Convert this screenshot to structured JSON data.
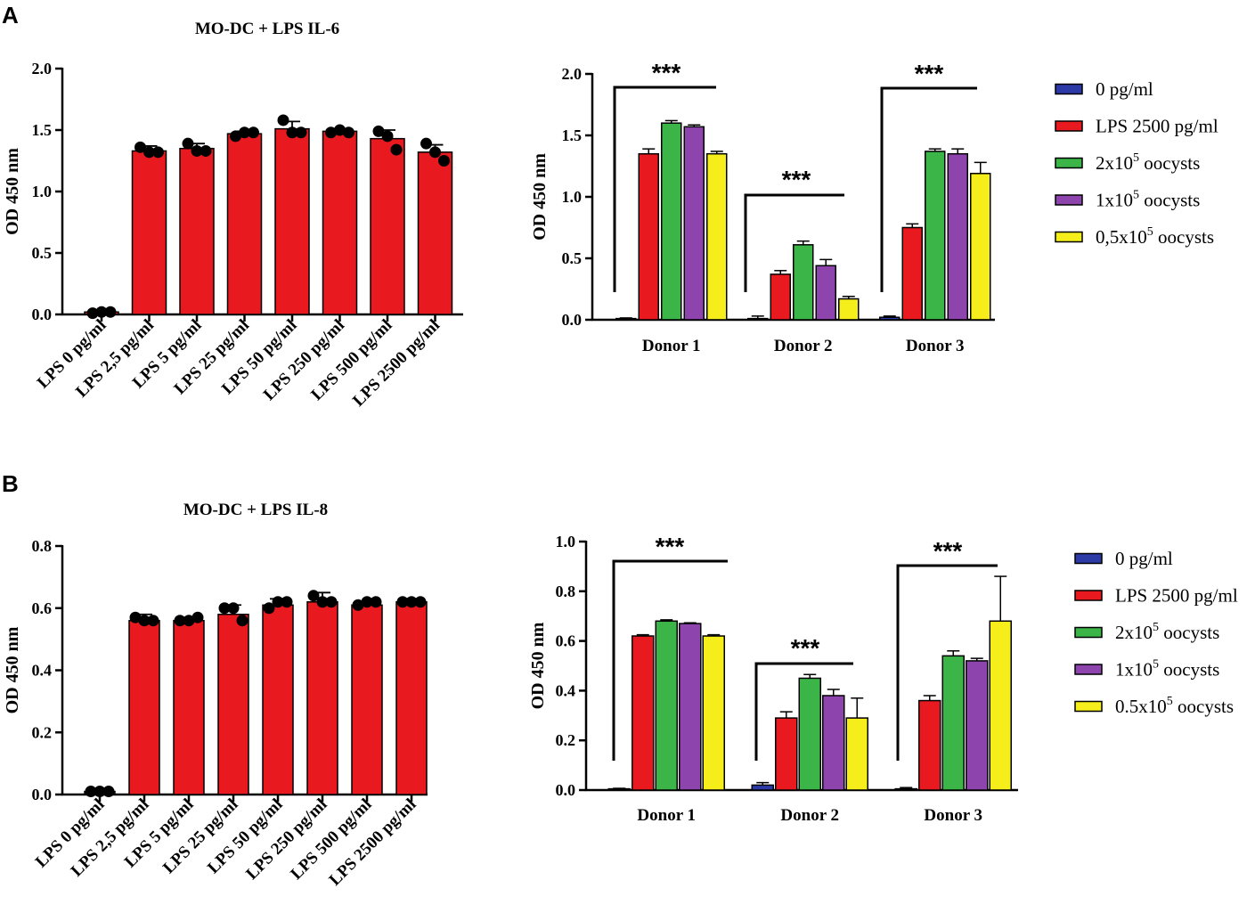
{
  "panel_labels": [
    "A",
    "B"
  ],
  "colors": {
    "red": "#e8191f",
    "blue": "#2c3aa8",
    "green": "#3cb548",
    "purple": "#8e44ad",
    "yellow": "#f5ee1a",
    "black": "#000000"
  },
  "chart_data": [
    {
      "id": "A-left",
      "type": "bar",
      "title": "MO-DC + LPS IL-6",
      "xlabel": "",
      "ylabel": "OD 450 nm",
      "ylim": [
        0,
        2.0
      ],
      "yticks": [
        0.0,
        0.5,
        1.0,
        1.5,
        2.0
      ],
      "ytick_labels": [
        "0.0",
        "0.5",
        "1.0",
        "1.5",
        "2.0"
      ],
      "categories": [
        "LPS 0 pg/ml",
        "LPS 2,5 pg/ml",
        "LPS 5 pg/ml",
        "LPS 25 pg/ml",
        "LPS 50 pg/ml",
        "LPS 250 pg/ml",
        "LPS 500 pg/ml",
        "LPS 2500 pg/ml"
      ],
      "values": [
        0.02,
        1.33,
        1.35,
        1.47,
        1.51,
        1.49,
        1.43,
        1.32
      ],
      "errors": [
        0.01,
        0.04,
        0.04,
        0.02,
        0.06,
        0.02,
        0.07,
        0.06
      ],
      "points": [
        [
          0.01,
          0.02,
          0.02
        ],
        [
          1.36,
          1.32,
          1.32
        ],
        [
          1.39,
          1.33,
          1.33
        ],
        [
          1.45,
          1.48,
          1.48
        ],
        [
          1.58,
          1.48,
          1.48
        ],
        [
          1.48,
          1.5,
          1.48
        ],
        [
          1.49,
          1.45,
          1.34
        ],
        [
          1.39,
          1.32,
          1.25
        ]
      ]
    },
    {
      "id": "A-right",
      "type": "bar",
      "xlabel": "",
      "ylabel": "OD 450 nm",
      "ylim": [
        0,
        2.0
      ],
      "yticks": [
        0.0,
        0.5,
        1.0,
        1.5,
        2.0
      ],
      "ytick_labels": [
        "0.0",
        "0.5",
        "1.0",
        "1.5",
        "2.0"
      ],
      "categories": [
        "Donor 1",
        "Donor 2",
        "Donor 3"
      ],
      "series": [
        {
          "name": "0 pg/ml",
          "color": "#2c3aa8",
          "values": [
            0.01,
            0.01,
            0.02
          ],
          "errors": [
            0.005,
            0.02,
            0.01
          ]
        },
        {
          "name": "LPS 2500 pg/ml",
          "color": "#e8191f",
          "values": [
            1.35,
            0.37,
            0.75
          ],
          "errors": [
            0.04,
            0.03,
            0.03
          ]
        },
        {
          "name": "2x10^5 oocysts",
          "color": "#3cb548",
          "values": [
            1.6,
            0.61,
            1.37
          ],
          "errors": [
            0.02,
            0.03,
            0.02
          ]
        },
        {
          "name": "1x10^5 oocysts",
          "color": "#8e44ad",
          "values": [
            1.57,
            0.44,
            1.35
          ],
          "errors": [
            0.015,
            0.05,
            0.04
          ]
        },
        {
          "name": "0,5x10^5 oocysts",
          "color": "#f5ee1a",
          "values": [
            1.35,
            0.17,
            1.19
          ],
          "errors": [
            0.02,
            0.02,
            0.09
          ]
        }
      ],
      "legend": [
        "0 pg/ml",
        "LPS 2500 pg/ml",
        "2x10^5 oocysts",
        "1x10^5 oocysts",
        "0,5x10^5 oocysts"
      ],
      "legend_position": "right",
      "annotations": [
        "***",
        "***",
        "***"
      ]
    },
    {
      "id": "B-left",
      "type": "bar",
      "title": "MO-DC + LPS IL-8",
      "xlabel": "",
      "ylabel": "OD 450 nm",
      "ylim": [
        0,
        0.8
      ],
      "yticks": [
        0.0,
        0.2,
        0.4,
        0.6,
        0.8
      ],
      "ytick_labels": [
        "0.0",
        "0.2",
        "0.4",
        "0.6",
        "0.8"
      ],
      "categories": [
        "LPS 0 pg/ml",
        "LPS 2,5 pg/ml",
        "LPS 5 pg/ml",
        "LPS 25 pg/ml",
        "LPS 50 pg/ml",
        "LPS 250 pg/ml",
        "LPS 500 pg/ml",
        "LPS 2500 pg/ml"
      ],
      "values": [
        0.01,
        0.56,
        0.56,
        0.58,
        0.61,
        0.62,
        0.61,
        0.62
      ],
      "errors": [
        0.003,
        0.02,
        0.01,
        0.03,
        0.02,
        0.03,
        0.01,
        0.01
      ],
      "points": [
        [
          0.01,
          0.01,
          0.01
        ],
        [
          0.57,
          0.56,
          0.56
        ],
        [
          0.56,
          0.56,
          0.57
        ],
        [
          0.6,
          0.6,
          0.56
        ],
        [
          0.6,
          0.62,
          0.62
        ],
        [
          0.64,
          0.62,
          0.62
        ],
        [
          0.61,
          0.62,
          0.62
        ],
        [
          0.62,
          0.62,
          0.62
        ]
      ]
    },
    {
      "id": "B-right",
      "type": "bar",
      "xlabel": "",
      "ylabel": "OD 450 nm",
      "ylim": [
        0,
        1.0
      ],
      "yticks": [
        0.0,
        0.2,
        0.4,
        0.6,
        0.8,
        1.0
      ],
      "ytick_labels": [
        "0.0",
        "0.2",
        "0.4",
        "0.6",
        "0.8",
        "1.0"
      ],
      "categories": [
        "Donor 1",
        "Donor 2",
        "Donor 3"
      ],
      "series": [
        {
          "name": "0 pg/ml",
          "color": "#2c3aa8",
          "values": [
            0.005,
            0.02,
            0.005
          ],
          "errors": [
            0.002,
            0.01,
            0.005
          ]
        },
        {
          "name": "LPS 2500 pg/ml",
          "color": "#e8191f",
          "values": [
            0.62,
            0.29,
            0.36
          ],
          "errors": [
            0.005,
            0.025,
            0.02
          ]
        },
        {
          "name": "2x10^5 oocysts",
          "color": "#3cb548",
          "values": [
            0.68,
            0.45,
            0.54
          ],
          "errors": [
            0.005,
            0.015,
            0.02
          ]
        },
        {
          "name": "1x10^5 oocysts",
          "color": "#8e44ad",
          "values": [
            0.67,
            0.38,
            0.52
          ],
          "errors": [
            0.003,
            0.025,
            0.01
          ]
        },
        {
          "name": "0.5x10^5 oocysts",
          "color": "#f5ee1a",
          "values": [
            0.62,
            0.29,
            0.68
          ],
          "errors": [
            0.005,
            0.08,
            0.18
          ]
        }
      ],
      "legend": [
        "0 pg/ml",
        "LPS 2500 pg/ml",
        "2x10^5 oocysts",
        "1x10^5 oocysts",
        "0.5x10^5 oocysts"
      ],
      "legend_position": "right",
      "annotations": [
        "***",
        "***",
        "***"
      ]
    }
  ]
}
